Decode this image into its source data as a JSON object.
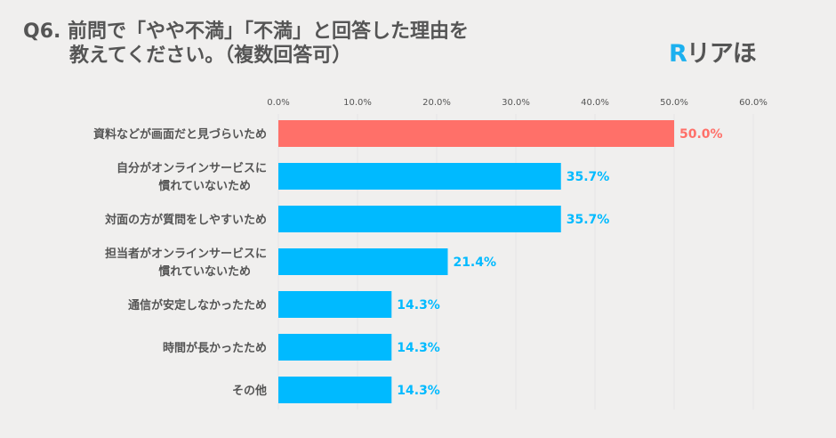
{
  "title": {
    "line1": "Q6. 前問で「やや不満」「不満」と回答した理由を",
    "line2": "教えてください。（複数回答可）"
  },
  "logo": {
    "mark": "R",
    "text": "リアほ"
  },
  "colors": {
    "highlight": "#ff7069",
    "bar": "#00baff",
    "text": "#555555",
    "background": "#f0efee"
  },
  "chart_data": {
    "type": "bar",
    "orientation": "horizontal",
    "categories": [
      [
        "資料などが画面だと見づらいため"
      ],
      [
        "自分がオンラインサービスに",
        "慣れていないため"
      ],
      [
        "対面の方が質問をしやすいため"
      ],
      [
        "担当者がオンラインサービスに",
        "慣れていないため"
      ],
      [
        "通信が安定しなかったため"
      ],
      [
        "時間が長かったため"
      ],
      [
        "その他"
      ]
    ],
    "values": [
      50.0,
      35.7,
      35.7,
      21.4,
      14.3,
      14.3,
      14.3
    ],
    "value_labels": [
      "50.0%",
      "35.7%",
      "35.7%",
      "21.4%",
      "14.3%",
      "14.3%",
      "14.3%"
    ],
    "highlight_index": 0,
    "xlim": [
      0,
      60
    ],
    "ticks": [
      "0.0%",
      "10.0%",
      "20.0%",
      "30.0%",
      "40.0%",
      "50.0%",
      "60.0%"
    ],
    "tick_position": "top",
    "grid": true
  }
}
